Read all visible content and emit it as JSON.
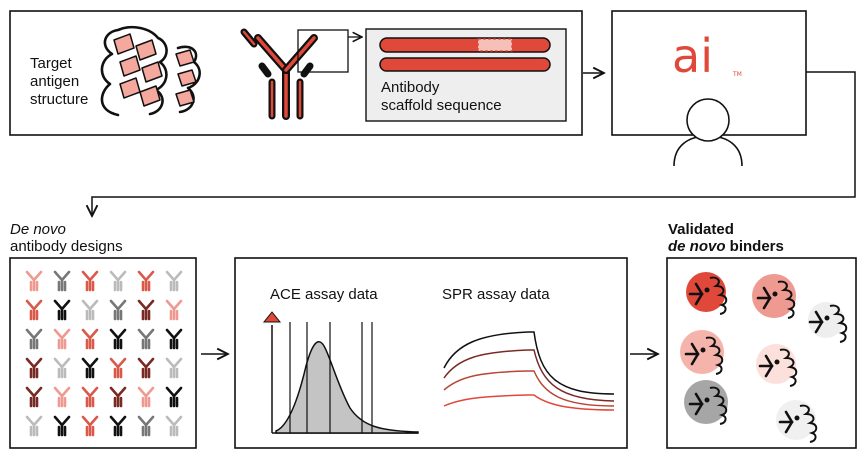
{
  "input_panel": {
    "target_label": [
      "Target",
      "antigen",
      "structure"
    ],
    "scaffold_label": [
      "Antibody",
      "scaffold sequence"
    ]
  },
  "ai_panel": {
    "logo_text": "ai",
    "logo_tm": "TM"
  },
  "designs": {
    "title_italic": "De novo",
    "title_rest": "antibody designs",
    "grid_colors": [
      [
        "#ef9a90",
        "#777777",
        "#d95a4a",
        "#bbbbbb",
        "#d95a4a",
        "#bbbbbb"
      ],
      [
        "#d95a4a",
        "#111111",
        "#bbbbbb",
        "#777777",
        "#7a2a24",
        "#ef9a90"
      ],
      [
        "#777777",
        "#ef9a90",
        "#d95a4a",
        "#111111",
        "#777777",
        "#111111"
      ],
      [
        "#7a2a24",
        "#bbbbbb",
        "#111111",
        "#d95a4a",
        "#7a2a24",
        "#bbbbbb"
      ],
      [
        "#7a2a24",
        "#ef9a90",
        "#d95a4a",
        "#7a2a24",
        "#ef9a90",
        "#111111"
      ],
      [
        "#bbbbbb",
        "#111111",
        "#d95a4a",
        "#111111",
        "#777777",
        "#bbbbbb"
      ]
    ]
  },
  "assays": {
    "ace_label": "ACE assay data",
    "spr_label": "SPR assay data"
  },
  "binders": {
    "title_line1": "Validated",
    "title_italic": "de novo",
    "title_rest": " binders",
    "circle_colors": [
      "#e0483a",
      "#ef9a90",
      "#eeeeee",
      "#f4b4ab",
      "#fbe0dc",
      "#a6a6a6",
      "#f0f0f0"
    ]
  },
  "colors": {
    "accent": "#e0483a",
    "accent_light": "#f4a89e",
    "panel_gray": "#eeeeee",
    "line": "#111111"
  }
}
